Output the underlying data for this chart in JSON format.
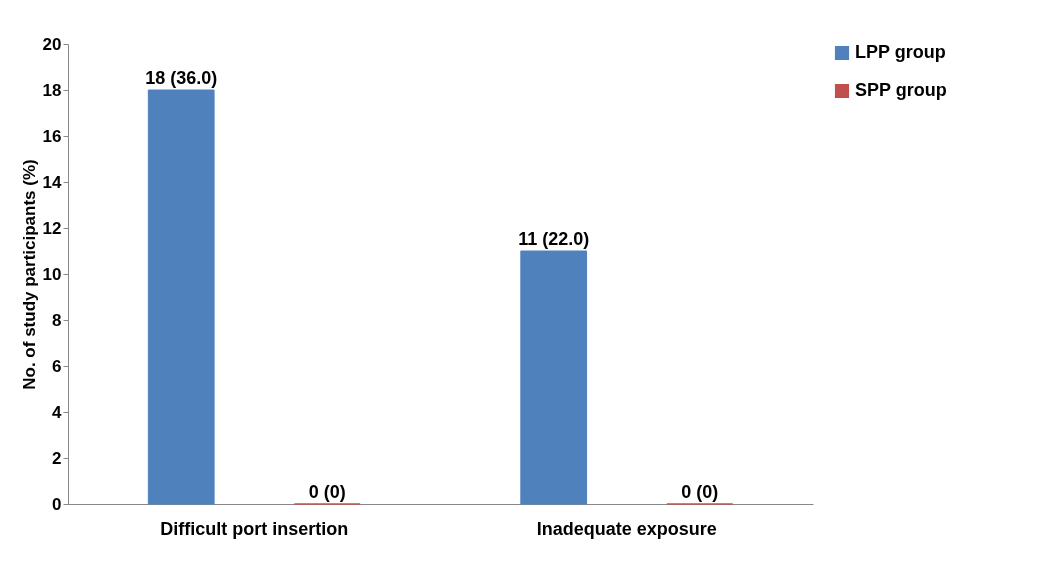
{
  "chart_data": {
    "type": "bar",
    "ylabel": "No. of study participants (%)",
    "categories": [
      "Difficult port insertion",
      "Inadequate exposure"
    ],
    "series": [
      {
        "name": "LPP group",
        "color": "#4f81bd",
        "values": [
          18,
          11
        ],
        "value_labels": [
          "18 (36.0)",
          "11 (22.0)"
        ]
      },
      {
        "name": "SPP group",
        "color": "#c0504d",
        "values": [
          0,
          0
        ],
        "value_labels": [
          "0 (0)",
          "0 (0)"
        ]
      }
    ],
    "ylim": [
      0,
      20
    ],
    "yticks": [
      0,
      2,
      4,
      6,
      8,
      10,
      12,
      14,
      16,
      18,
      20
    ],
    "grid": false,
    "legend": "right"
  }
}
